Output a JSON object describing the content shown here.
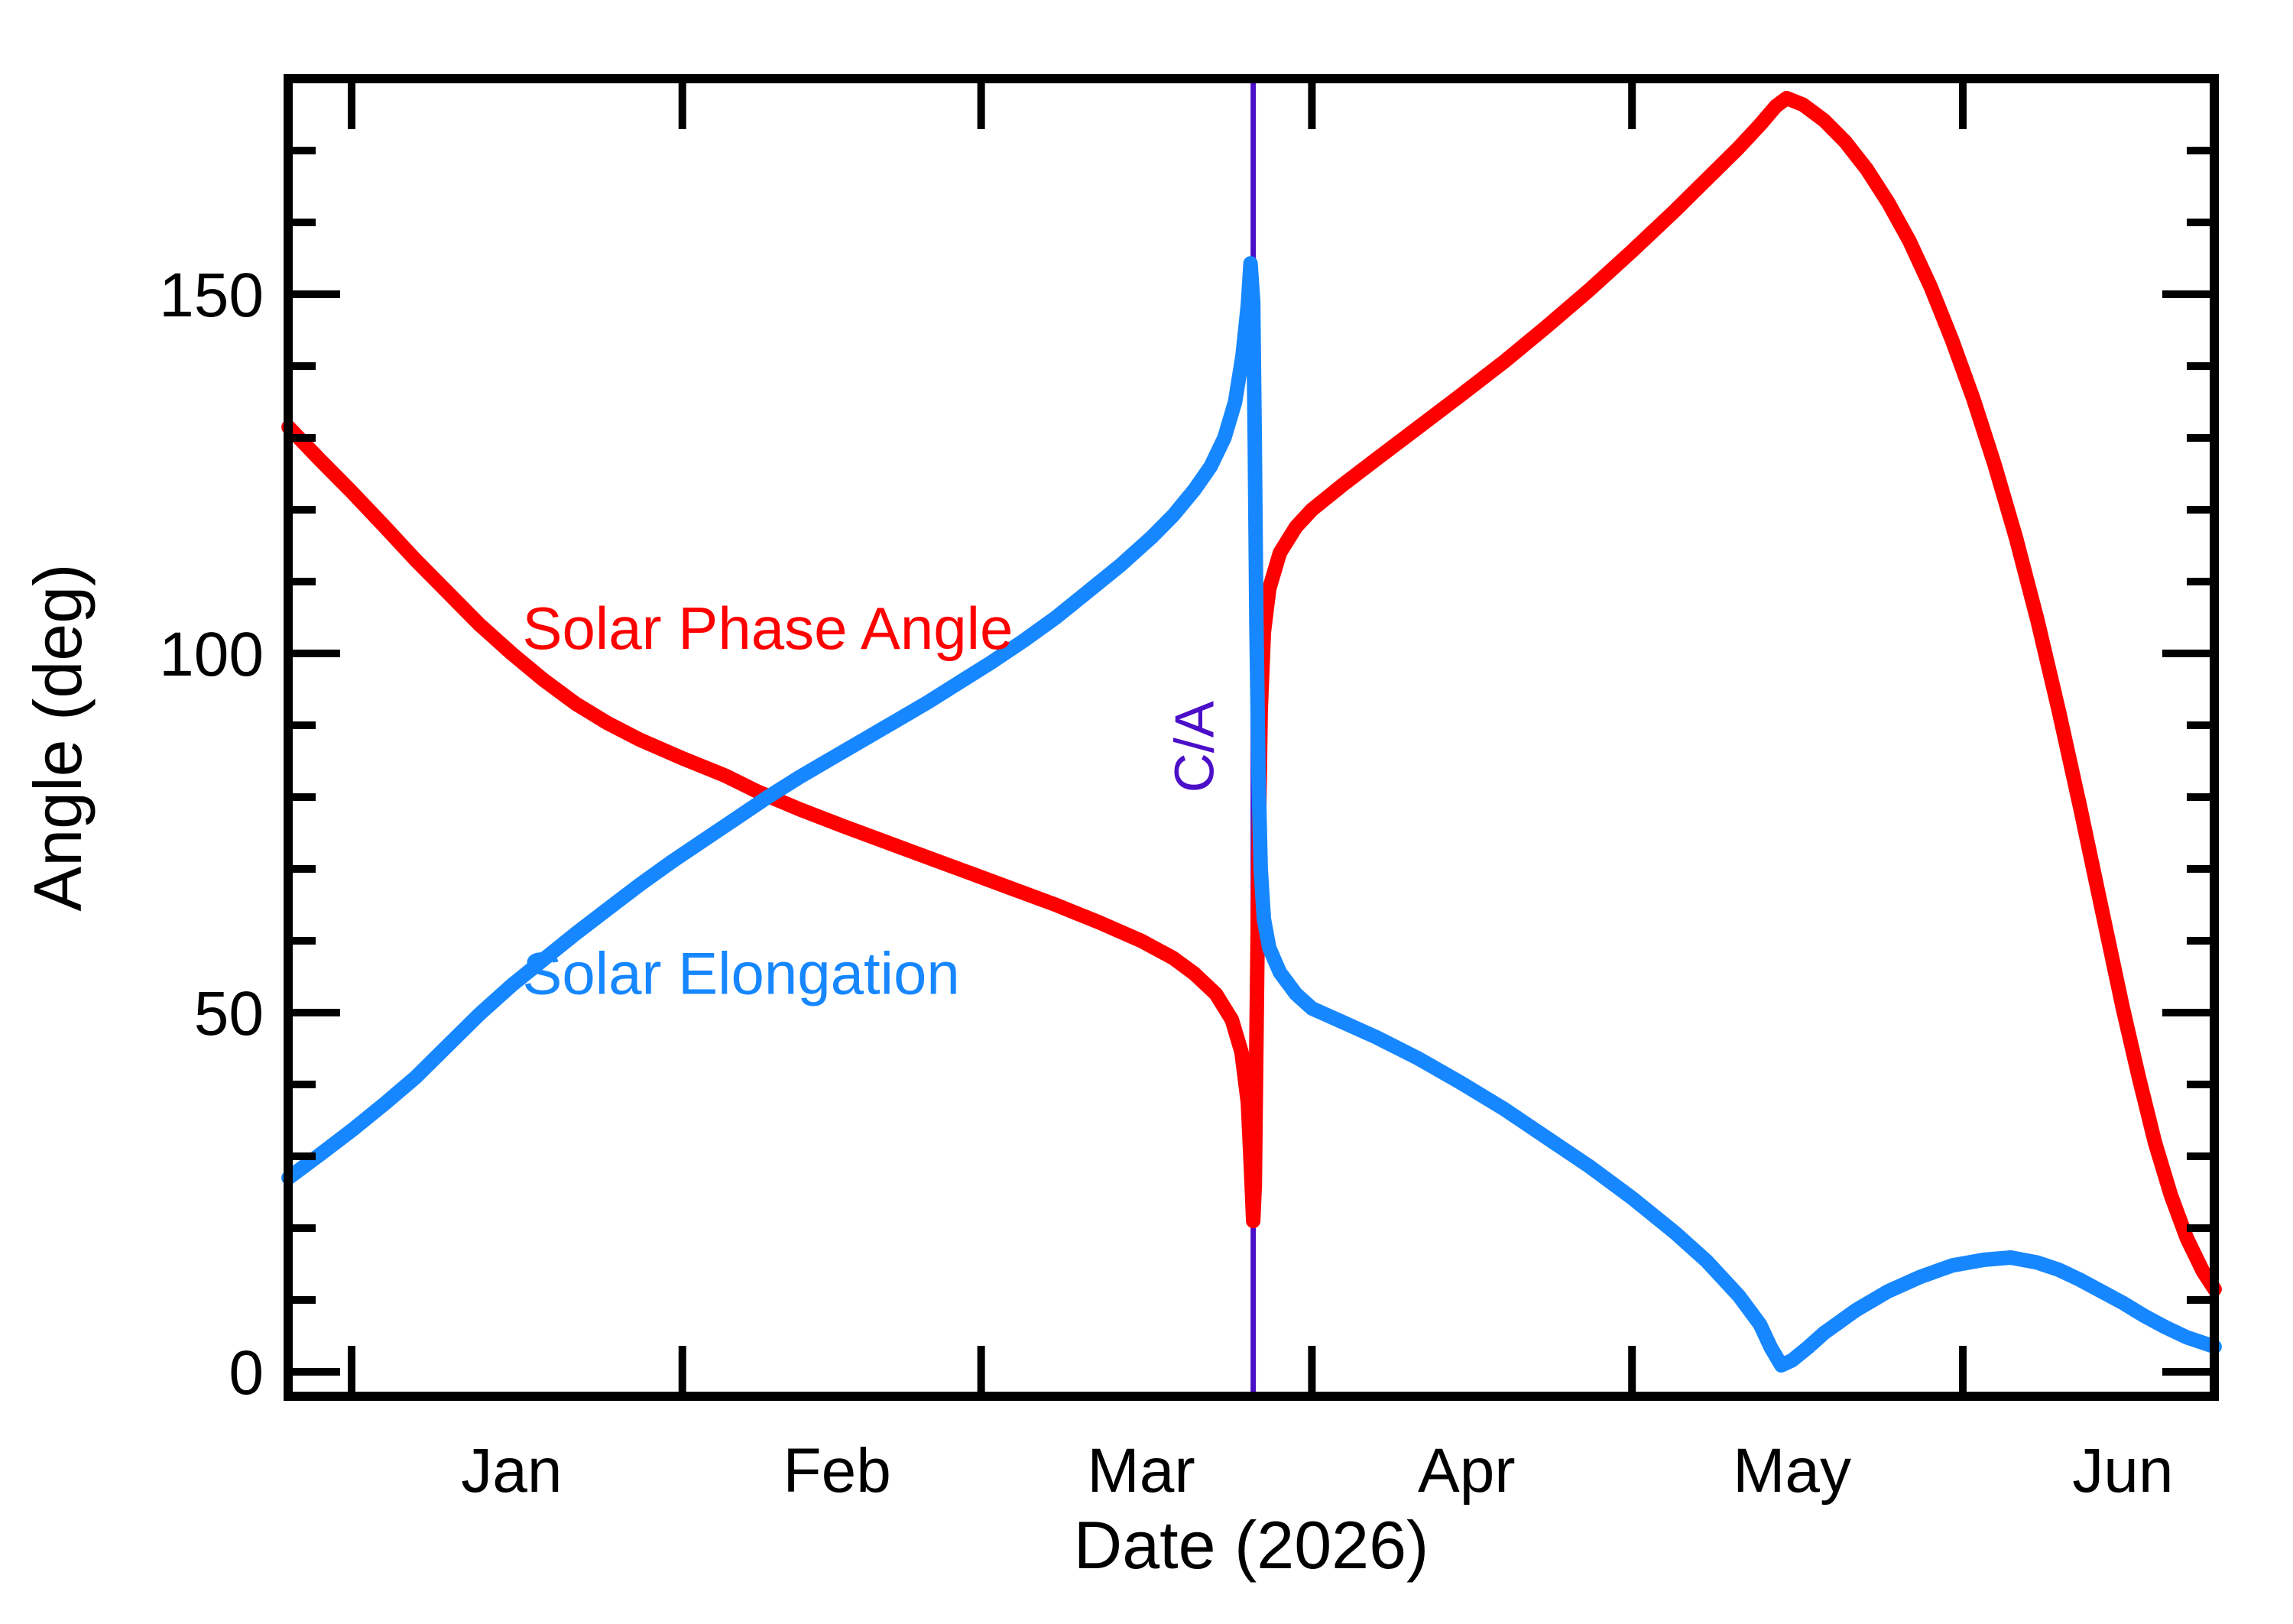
{
  "page": {
    "background": "#ffffff"
  },
  "chart_data": {
    "type": "line",
    "title": "",
    "xlabel": "Date (2026)",
    "ylabel": "Angle (deg)",
    "grid": false,
    "legend_position": "inline-curve-labels",
    "x_axis": {
      "unit": "days_from_2026-01-01",
      "range_days": [
        -5.9,
        174.6
      ],
      "month_ticks": [
        {
          "label": "Jan",
          "start_day": 0,
          "mid_day": 15
        },
        {
          "label": "Feb",
          "start_day": 31,
          "mid_day": 45.5
        },
        {
          "label": "Mar",
          "start_day": 59,
          "mid_day": 74
        },
        {
          "label": "Apr",
          "start_day": 90,
          "mid_day": 104.5
        },
        {
          "label": "May",
          "start_day": 120,
          "mid_day": 135
        },
        {
          "label": "Jun",
          "start_day": 151,
          "mid_day": 166
        }
      ]
    },
    "y_axis": {
      "range": [
        -3.5,
        180
      ],
      "major_ticks": [
        0,
        50,
        100,
        150
      ],
      "major_tick_labels": [
        "0",
        "50",
        "100",
        "150"
      ],
      "minor_tick_step": 10,
      "minor_tick_max": 170
    },
    "series": [
      {
        "name": "Solar Phase Angle",
        "color": "#ff0000",
        "label_anchor": {
          "day": 39,
          "deg": 103.5
        },
        "points": [
          [
            -5.9,
            131.5
          ],
          [
            -3,
            127
          ],
          [
            0,
            122.5
          ],
          [
            3,
            117.8
          ],
          [
            6,
            113
          ],
          [
            9,
            108.5
          ],
          [
            12,
            104
          ],
          [
            15,
            100
          ],
          [
            18,
            96.3
          ],
          [
            21,
            93
          ],
          [
            24,
            90.3
          ],
          [
            27,
            88
          ],
          [
            31,
            85.4
          ],
          [
            35,
            83
          ],
          [
            38,
            80.8
          ],
          [
            42,
            78.3
          ],
          [
            46,
            76
          ],
          [
            50,
            73.8
          ],
          [
            54,
            71.6
          ],
          [
            58,
            69.4
          ],
          [
            62,
            67.2
          ],
          [
            66,
            65
          ],
          [
            70,
            62.6
          ],
          [
            74,
            60
          ],
          [
            77,
            57.6
          ],
          [
            79,
            55.4
          ],
          [
            81,
            52.6
          ],
          [
            82.5,
            49
          ],
          [
            83.4,
            44.5
          ],
          [
            84,
            37.5
          ],
          [
            84.3,
            28
          ],
          [
            84.5,
            21
          ],
          [
            84.65,
            26
          ],
          [
            84.8,
            46
          ],
          [
            85,
            72
          ],
          [
            85.2,
            92
          ],
          [
            85.5,
            103
          ],
          [
            86,
            109
          ],
          [
            87,
            114
          ],
          [
            88.5,
            117.6
          ],
          [
            90,
            120
          ],
          [
            93,
            123.6
          ],
          [
            96,
            127
          ],
          [
            100,
            131.5
          ],
          [
            104,
            136
          ],
          [
            108,
            140.6
          ],
          [
            112,
            145.5
          ],
          [
            116,
            150.6
          ],
          [
            120,
            156
          ],
          [
            124,
            161.6
          ],
          [
            127,
            166
          ],
          [
            130,
            170.4
          ],
          [
            132,
            173.6
          ],
          [
            133.5,
            176.2
          ],
          [
            134.5,
            177.3
          ],
          [
            136,
            176.4
          ],
          [
            138,
            174.2
          ],
          [
            140,
            171.2
          ],
          [
            142,
            167.4
          ],
          [
            144,
            162.8
          ],
          [
            146,
            157.4
          ],
          [
            148,
            151
          ],
          [
            150,
            143.6
          ],
          [
            152,
            135.4
          ],
          [
            154,
            126.2
          ],
          [
            156,
            116
          ],
          [
            158,
            104.6
          ],
          [
            160,
            92
          ],
          [
            162,
            78.6
          ],
          [
            164,
            64.6
          ],
          [
            166,
            50.6
          ],
          [
            167.5,
            41
          ],
          [
            169,
            32
          ],
          [
            170.5,
            24.6
          ],
          [
            172,
            18.6
          ],
          [
            173.5,
            14
          ],
          [
            174.6,
            11.5
          ]
        ]
      },
      {
        "name": "Solar Elongation",
        "color": "#1787ff",
        "label_anchor": {
          "day": 36.5,
          "deg": 55.5
        },
        "points": [
          [
            -5.9,
            27
          ],
          [
            -3,
            30.2
          ],
          [
            0,
            33.6
          ],
          [
            3,
            37.2
          ],
          [
            6,
            41
          ],
          [
            9,
            45.4
          ],
          [
            12,
            49.8
          ],
          [
            15,
            53.8
          ],
          [
            18,
            57.4
          ],
          [
            21,
            61
          ],
          [
            24,
            64.4
          ],
          [
            27,
            67.8
          ],
          [
            30,
            71
          ],
          [
            33,
            74
          ],
          [
            36,
            77
          ],
          [
            39,
            80
          ],
          [
            42,
            82.8
          ],
          [
            45,
            85.4
          ],
          [
            48,
            88
          ],
          [
            51,
            90.6
          ],
          [
            54,
            93.2
          ],
          [
            57,
            96
          ],
          [
            60,
            98.8
          ],
          [
            63,
            101.8
          ],
          [
            66,
            105
          ],
          [
            69,
            108.6
          ],
          [
            72,
            112.2
          ],
          [
            75,
            116.2
          ],
          [
            77,
            119.2
          ],
          [
            79,
            122.8
          ],
          [
            80.5,
            126
          ],
          [
            81.8,
            130
          ],
          [
            82.8,
            135
          ],
          [
            83.5,
            141.5
          ],
          [
            84,
            148.5
          ],
          [
            84.25,
            154.3
          ],
          [
            84.5,
            149
          ],
          [
            84.65,
            129
          ],
          [
            84.8,
            104
          ],
          [
            85,
            83
          ],
          [
            85.2,
            70
          ],
          [
            85.5,
            63
          ],
          [
            86,
            59
          ],
          [
            87,
            55.6
          ],
          [
            88.5,
            52.6
          ],
          [
            90,
            50.6
          ],
          [
            93,
            48.6
          ],
          [
            96,
            46.6
          ],
          [
            100,
            43.6
          ],
          [
            104,
            40.2
          ],
          [
            108,
            36.6
          ],
          [
            112,
            32.6
          ],
          [
            116,
            28.6
          ],
          [
            120,
            24.2
          ],
          [
            124,
            19.4
          ],
          [
            127,
            15.4
          ],
          [
            130,
            10.6
          ],
          [
            132,
            6.6
          ],
          [
            133,
            3.4
          ],
          [
            134,
            0.9
          ],
          [
            135,
            1.6
          ],
          [
            136.5,
            3.4
          ],
          [
            138,
            5.4
          ],
          [
            141,
            8.6
          ],
          [
            144,
            11.2
          ],
          [
            147,
            13.2
          ],
          [
            150,
            14.8
          ],
          [
            153,
            15.6
          ],
          [
            155.5,
            15.9
          ],
          [
            158,
            15.2
          ],
          [
            160,
            14.2
          ],
          [
            162,
            12.8
          ],
          [
            164,
            11.2
          ],
          [
            166,
            9.6
          ],
          [
            168,
            7.8
          ],
          [
            170,
            6.2
          ],
          [
            172,
            4.8
          ],
          [
            174.6,
            3.5
          ]
        ]
      }
    ],
    "annotation": {
      "label": "C/A",
      "day": 84.5,
      "color": "#4b0fc8",
      "label_anchor": {
        "day": 79.4,
        "deg": 87
      }
    }
  }
}
